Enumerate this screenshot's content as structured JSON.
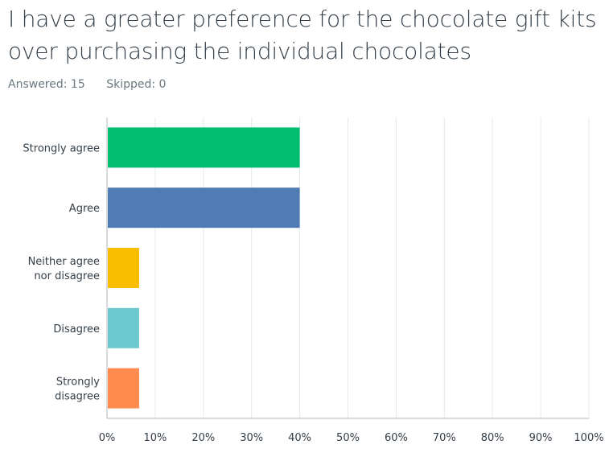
{
  "title": "I have a greater preference for the chocolate gift kits over purchasing the individual chocolates",
  "stats": {
    "answered_label": "Answered: 15",
    "skipped_label": "Skipped: 0"
  },
  "chart_data": {
    "type": "bar",
    "orientation": "horizontal",
    "categories": [
      [
        "Strongly agree"
      ],
      [
        "Agree"
      ],
      [
        "Neither agree",
        "nor disagree"
      ],
      [
        "Disagree"
      ],
      [
        "Strongly",
        "disagree"
      ]
    ],
    "values": [
      40,
      40,
      6.67,
      6.67,
      6.67
    ],
    "colors": [
      "#00bf6f",
      "#507cb6",
      "#f9be00",
      "#6bc8cd",
      "#ff8b4f"
    ],
    "xlim": [
      0,
      100
    ],
    "ticks": [
      "0%",
      "10%",
      "20%",
      "30%",
      "40%",
      "50%",
      "60%",
      "70%",
      "80%",
      "90%",
      "100%"
    ],
    "grid": true
  }
}
